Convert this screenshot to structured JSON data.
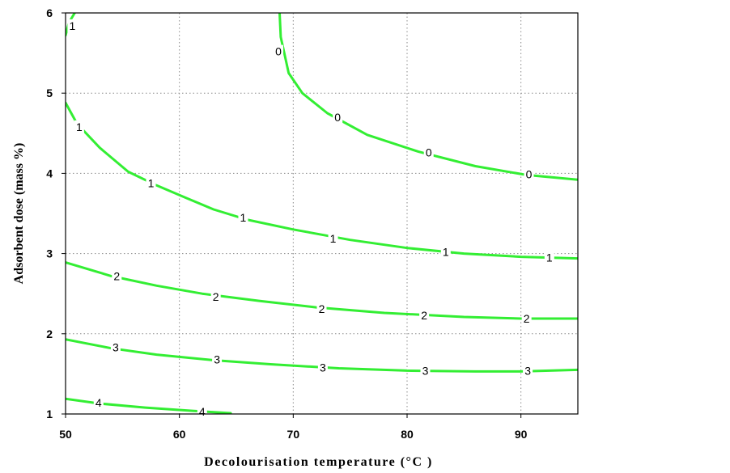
{
  "chart_data": {
    "type": "contour",
    "xlabel": "Decolourisation temperature (°C )",
    "ylabel": "Adsorbent dose (mass %)",
    "xlim": [
      50,
      95
    ],
    "ylim": [
      1,
      6
    ],
    "x_ticks": [
      50,
      60,
      70,
      80,
      90
    ],
    "y_ticks": [
      1,
      2,
      3,
      4,
      5,
      6
    ],
    "grid": true,
    "line_color": "#33ee33",
    "contours": [
      {
        "level": "0",
        "points": [
          [
            68.8,
            6.0
          ],
          [
            68.9,
            5.7
          ],
          [
            69.6,
            5.25
          ],
          [
            70.8,
            5.0
          ],
          [
            73.0,
            4.75
          ],
          [
            76.5,
            4.48
          ],
          [
            81.0,
            4.27
          ],
          [
            86.0,
            4.09
          ],
          [
            90.5,
            3.98
          ],
          [
            95.0,
            3.92
          ]
        ],
        "labels": [
          [
            68.7,
            5.52
          ],
          [
            73.9,
            4.7
          ],
          [
            81.9,
            4.26
          ],
          [
            90.7,
            3.99
          ]
        ]
      },
      {
        "level": "1",
        "points": [
          [
            50.0,
            5.72
          ],
          [
            50.3,
            5.88
          ],
          [
            50.8,
            6.0
          ]
        ],
        "labels": [
          [
            50.6,
            5.84
          ]
        ]
      },
      {
        "level": "1",
        "points": [
          [
            50.0,
            4.88
          ],
          [
            51.0,
            4.62
          ],
          [
            53.0,
            4.32
          ],
          [
            55.5,
            4.02
          ],
          [
            58.0,
            3.85
          ],
          [
            60.5,
            3.7
          ],
          [
            63.0,
            3.55
          ],
          [
            66.0,
            3.42
          ],
          [
            70.0,
            3.3
          ],
          [
            75.0,
            3.17
          ],
          [
            80.0,
            3.07
          ],
          [
            85.0,
            3.0
          ],
          [
            90.0,
            2.96
          ],
          [
            95.0,
            2.94
          ]
        ],
        "labels": [
          [
            51.2,
            4.58
          ],
          [
            57.5,
            3.88
          ],
          [
            65.6,
            3.45
          ],
          [
            73.5,
            3.19
          ],
          [
            83.4,
            3.02
          ],
          [
            92.5,
            2.95
          ]
        ]
      },
      {
        "level": "2",
        "points": [
          [
            50.0,
            2.89
          ],
          [
            54.0,
            2.72
          ],
          [
            58.0,
            2.6
          ],
          [
            62.0,
            2.5
          ],
          [
            67.0,
            2.41
          ],
          [
            72.0,
            2.33
          ],
          [
            78.0,
            2.26
          ],
          [
            85.0,
            2.21
          ],
          [
            90.0,
            2.19
          ],
          [
            95.0,
            2.19
          ]
        ],
        "labels": [
          [
            54.5,
            2.72
          ],
          [
            63.2,
            2.46
          ],
          [
            72.5,
            2.31
          ],
          [
            81.5,
            2.23
          ],
          [
            90.5,
            2.19
          ]
        ]
      },
      {
        "level": "3",
        "points": [
          [
            50.0,
            1.93
          ],
          [
            54.0,
            1.82
          ],
          [
            58.0,
            1.74
          ],
          [
            63.0,
            1.67
          ],
          [
            68.0,
            1.62
          ],
          [
            74.0,
            1.57
          ],
          [
            80.0,
            1.54
          ],
          [
            86.0,
            1.53
          ],
          [
            90.0,
            1.53
          ],
          [
            95.0,
            1.55
          ]
        ],
        "labels": [
          [
            54.4,
            1.83
          ],
          [
            63.3,
            1.68
          ],
          [
            72.6,
            1.58
          ],
          [
            81.6,
            1.54
          ],
          [
            90.6,
            1.54
          ]
        ]
      },
      {
        "level": "4",
        "points": [
          [
            50.0,
            1.19
          ],
          [
            53.0,
            1.13
          ],
          [
            57.0,
            1.08
          ],
          [
            61.0,
            1.04
          ],
          [
            64.5,
            1.01
          ]
        ],
        "labels": [
          [
            52.9,
            1.14
          ],
          [
            62.0,
            1.03
          ]
        ]
      }
    ]
  }
}
